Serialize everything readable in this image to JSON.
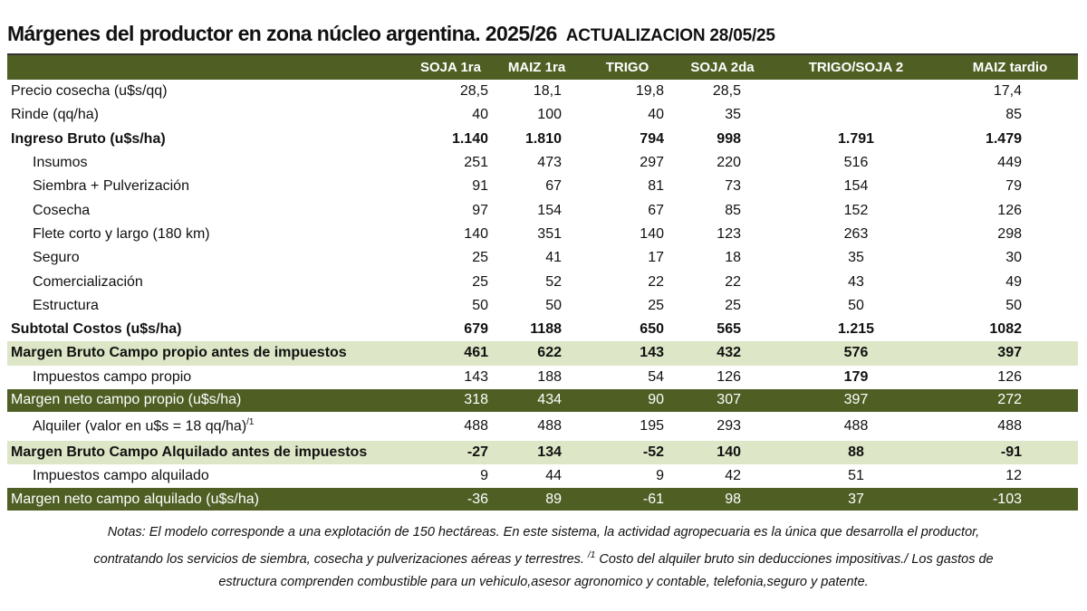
{
  "title": "Márgenes  del productor en zona núcleo argentina. 2025/26",
  "update": "ACTUALIZACION 28/05/25",
  "columns": [
    "",
    "SOJA 1ra",
    "MAIZ 1ra",
    "TRIGO",
    "SOJA 2da",
    "TRIGO/SOJA 2",
    "MAIZ tardio"
  ],
  "colors": {
    "dark_green": "#4f5f24",
    "light_green": "#dde6c6"
  },
  "rows": [
    {
      "label": "Precio cosecha (u$s/qq)",
      "values": [
        "28,5",
        "18,1",
        "19,8",
        "28,5",
        "",
        "17,4"
      ]
    },
    {
      "label": "Rinde (qq/ha)",
      "values": [
        "40",
        "100",
        "40",
        "35",
        "",
        "85"
      ]
    },
    {
      "label": "Ingreso Bruto (u$s/ha)",
      "values": [
        "1.140",
        "1.810",
        "794",
        "998",
        "1.791",
        "1.479"
      ]
    },
    {
      "label": "Insumos",
      "values": [
        "251",
        "473",
        "297",
        "220",
        "516",
        "449"
      ]
    },
    {
      "label": "Siembra + Pulverización",
      "values": [
        "91",
        "67",
        "81",
        "73",
        "154",
        "79"
      ]
    },
    {
      "label": "Cosecha",
      "values": [
        "97",
        "154",
        "67",
        "85",
        "152",
        "126"
      ]
    },
    {
      "label": "Flete corto y largo (180 km)",
      "values": [
        "140",
        "351",
        "140",
        "123",
        "263",
        "298"
      ]
    },
    {
      "label": "Seguro",
      "values": [
        "25",
        "41",
        "17",
        "18",
        "35",
        "30"
      ]
    },
    {
      "label": "Comercialización",
      "values": [
        "25",
        "52",
        "22",
        "22",
        "43",
        "49"
      ]
    },
    {
      "label": "Estructura",
      "values": [
        "50",
        "50",
        "25",
        "25",
        "50",
        "50"
      ]
    },
    {
      "label": "Subtotal Costos (u$s/ha)",
      "values": [
        "679",
        "1188",
        "650",
        "565",
        "1.215",
        "1082"
      ]
    },
    {
      "label": "Margen Bruto Campo propio antes de impuestos",
      "values": [
        "461",
        "622",
        "143",
        "432",
        "576",
        "397"
      ]
    },
    {
      "label": "Impuestos  campo propio",
      "values": [
        "143",
        "188",
        "54",
        "126",
        "179",
        "126"
      ]
    },
    {
      "label": "Margen neto campo propio (u$s/ha)",
      "values": [
        "318",
        "434",
        "90",
        "307",
        "397",
        "272"
      ]
    },
    {
      "label": "Alquiler (valor en u$s = 18 qq/ha)",
      "sup": "/1",
      "values": [
        "488",
        "488",
        "195",
        "293",
        "488",
        "488"
      ]
    },
    {
      "label": "Margen Bruto Campo Alquilado antes de impuestos",
      "values": [
        "-27",
        "134",
        "-52",
        "140",
        "88",
        "-91"
      ]
    },
    {
      "label": "Impuestos campo alquilado",
      "values": [
        "9",
        "44",
        "9",
        "42",
        "51",
        "12"
      ]
    },
    {
      "label": "Margen neto campo alquilado (u$s/ha)",
      "values": [
        "-36",
        "89",
        "-61",
        "98",
        "37",
        "-103"
      ]
    }
  ],
  "notes": {
    "line1": "Notas: El modelo corresponde a una explotación de 150 hectáreas. En este sistema, la actividad agropecuaria es la única que desarrolla el productor,",
    "line2a": "contratando los servicios de siembra, cosecha y pulverizaciones aéreas y terrestres.",
    "line2sup": "/1",
    "line2b": "Costo del alquiler bruto sin deducciones impositivas./ Los gastos de",
    "line3": "estructura comprenden combustible para un vehiculo,asesor agronomico y contable, telefonia,seguro y patente."
  }
}
